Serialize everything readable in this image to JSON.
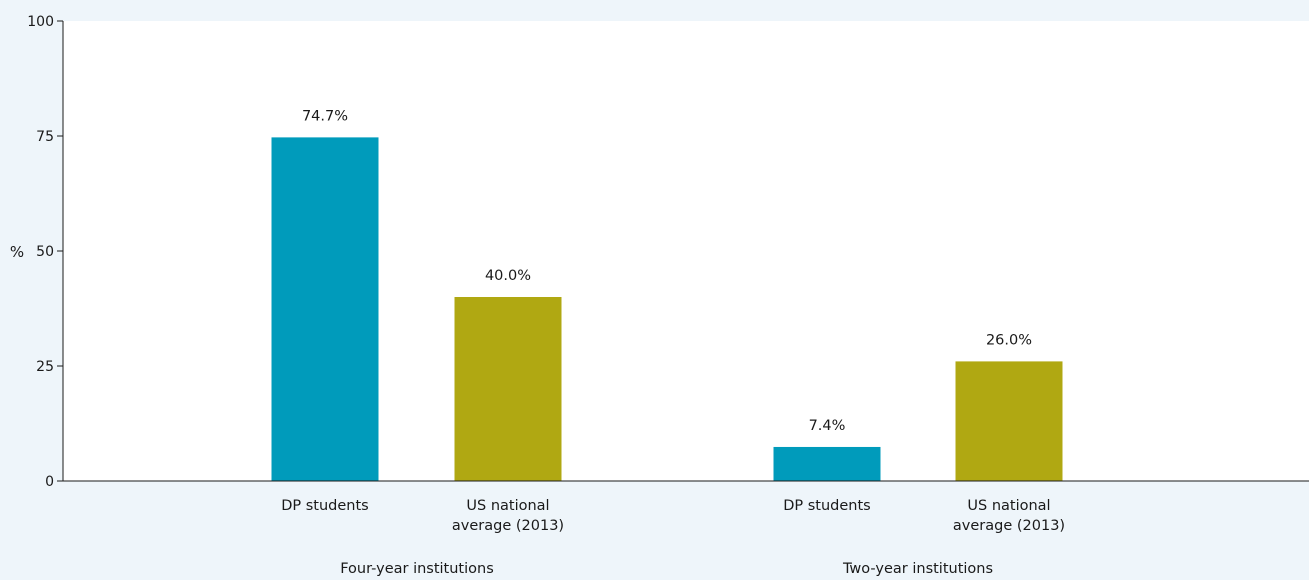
{
  "chart_data": {
    "type": "bar",
    "ylabel": "%",
    "ylim": [
      0,
      100
    ],
    "yticks": [
      0,
      25,
      50,
      75,
      100
    ],
    "grid": false,
    "groups": [
      {
        "name": "Four-year institutions",
        "bars": [
          {
            "label": [
              "DP students"
            ],
            "value": 74.7,
            "value_label": "74.7%",
            "color": "#009bbb"
          },
          {
            "label": [
              "US national",
              "average (2013)"
            ],
            "value": 40.0,
            "value_label": "40.0%",
            "color": "#b0a812"
          }
        ]
      },
      {
        "name": "Two-year institutions",
        "bars": [
          {
            "label": [
              "DP students"
            ],
            "value": 7.4,
            "value_label": "7.4%",
            "color": "#009bbb"
          },
          {
            "label": [
              "US national",
              "average (2013)"
            ],
            "value": 26.0,
            "value_label": "26.0%",
            "color": "#b0a812"
          }
        ]
      }
    ]
  }
}
